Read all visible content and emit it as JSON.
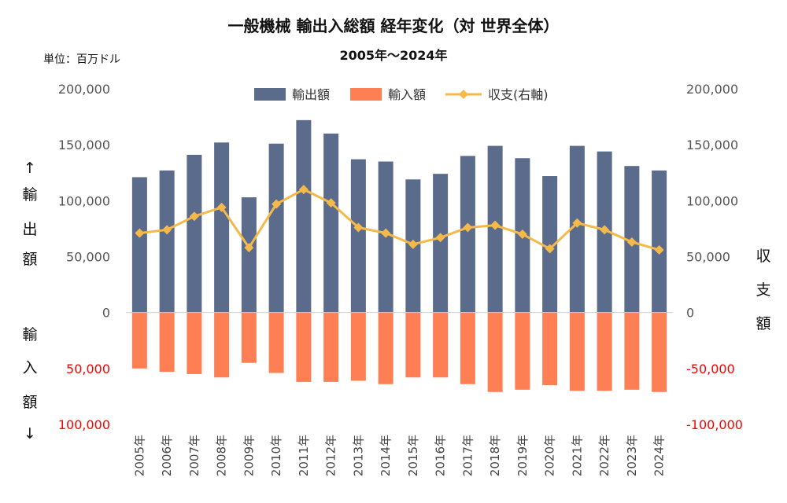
{
  "chart_data": {
    "type": "bar",
    "title": "一般機械 輸出入総額 経年変化（対 世界全体）",
    "subtitle": "2005年～2024年",
    "unit_label": "単位：百万ドル",
    "categories": [
      "2005年",
      "2006年",
      "2007年",
      "2008年",
      "2009年",
      "2010年",
      "2011年",
      "2012年",
      "2013年",
      "2014年",
      "2015年",
      "2016年",
      "2017年",
      "2018年",
      "2019年",
      "2020年",
      "2021年",
      "2022年",
      "2023年",
      "2024年"
    ],
    "series": [
      {
        "name": "輸出額",
        "kind": "bar",
        "color": "#5b6b8c",
        "values": [
          121000,
          127000,
          141000,
          152000,
          103000,
          151000,
          172000,
          160000,
          137000,
          135000,
          119000,
          124000,
          140000,
          149000,
          138000,
          122000,
          149000,
          144000,
          131000,
          127000
        ]
      },
      {
        "name": "輸入額",
        "kind": "bar",
        "color": "#ff7f55",
        "values": [
          -50000,
          -53000,
          -55000,
          -58000,
          -45000,
          -54000,
          -62000,
          -62000,
          -61000,
          -64000,
          -58000,
          -58000,
          -64000,
          -71000,
          -69000,
          -65000,
          -70000,
          -70000,
          -69000,
          -71000
        ]
      },
      {
        "name": "収支(右軸)",
        "kind": "line",
        "color": "#f5b94a",
        "values": [
          71000,
          74000,
          86000,
          94000,
          58000,
          97000,
          110000,
          98000,
          76000,
          71000,
          61000,
          67000,
          76000,
          78000,
          70000,
          57000,
          80000,
          74000,
          63000,
          56000
        ]
      }
    ],
    "left_axis": {
      "ylim": [
        -100000,
        200000
      ],
      "ticks": [
        {
          "value": 200000,
          "label": "200,000"
        },
        {
          "value": 150000,
          "label": "150,000"
        },
        {
          "value": 100000,
          "label": "100,000"
        },
        {
          "value": 50000,
          "label": "50,000"
        },
        {
          "value": 0,
          "label": "0"
        },
        {
          "value": -50000,
          "label": "50,000"
        },
        {
          "value": -100000,
          "label": "100,000"
        }
      ],
      "label_top": [
        "↑",
        "輸",
        "出",
        "額"
      ],
      "label_bottom": [
        "輸",
        "入",
        "額",
        "↓"
      ]
    },
    "right_axis": {
      "ylim": [
        -100000,
        200000
      ],
      "ticks": [
        {
          "value": 200000,
          "label": "200,000"
        },
        {
          "value": 150000,
          "label": "150,000"
        },
        {
          "value": 100000,
          "label": "100,000"
        },
        {
          "value": 50000,
          "label": "50,000"
        },
        {
          "value": 0,
          "label": "0"
        },
        {
          "value": -50000,
          "label": "-50,000"
        },
        {
          "value": -100000,
          "label": "-100,000"
        }
      ],
      "label": [
        "収",
        "支",
        "額"
      ]
    },
    "negative_tick_color": "#ff0000",
    "legend_placement": "top-center",
    "grid": false
  }
}
